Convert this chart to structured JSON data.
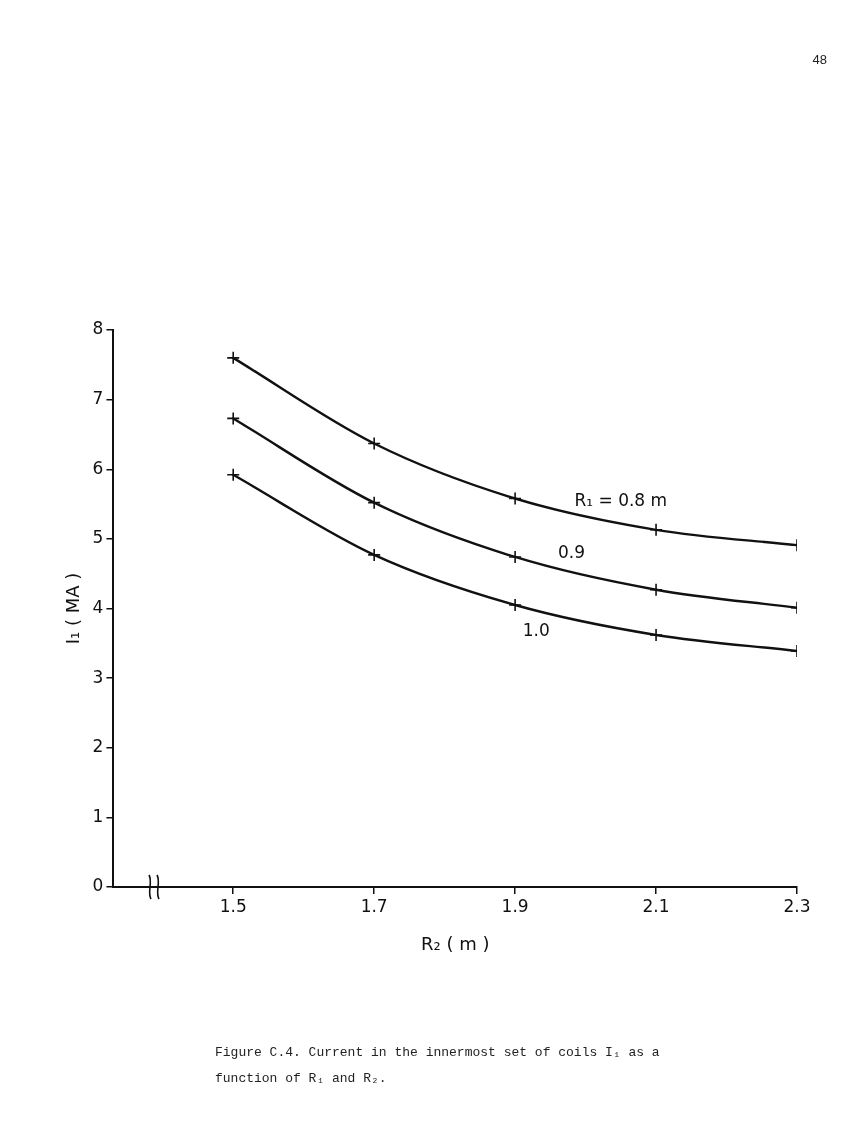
{
  "chart_data": {
    "type": "line",
    "xlabel": "R₂ ( m )",
    "ylabel": "I₁ ( MA )",
    "annotations": [
      "48",
      "Figure C.4.    Current in the innermost set of coils I₁ as a function of R₁ and R₂."
    ],
    "x": [
      1.5,
      1.7,
      1.9,
      2.1,
      2.3
    ],
    "xlim": [
      1.33,
      2.3
    ],
    "xticks": [
      1.5,
      1.7,
      1.9,
      2.1,
      2.3
    ],
    "ylim": [
      0,
      8
    ],
    "yticks": [
      0,
      1,
      2,
      3,
      4,
      5,
      6,
      7,
      8
    ],
    "series": [
      {
        "name": "R₁ = 0.8 m",
        "color": "#111111",
        "values": [
          7.6,
          6.37,
          5.58,
          5.13,
          4.91
        ]
      },
      {
        "name": "0.9",
        "color": "#111111",
        "values": [
          6.73,
          5.52,
          4.74,
          4.27,
          4.01
        ]
      },
      {
        "name": "1.0",
        "color": "#111111",
        "values": [
          5.92,
          4.77,
          4.05,
          3.62,
          3.39
        ]
      }
    ],
    "grid": false,
    "legend": false,
    "marker": "cross",
    "line_style": "solid"
  }
}
